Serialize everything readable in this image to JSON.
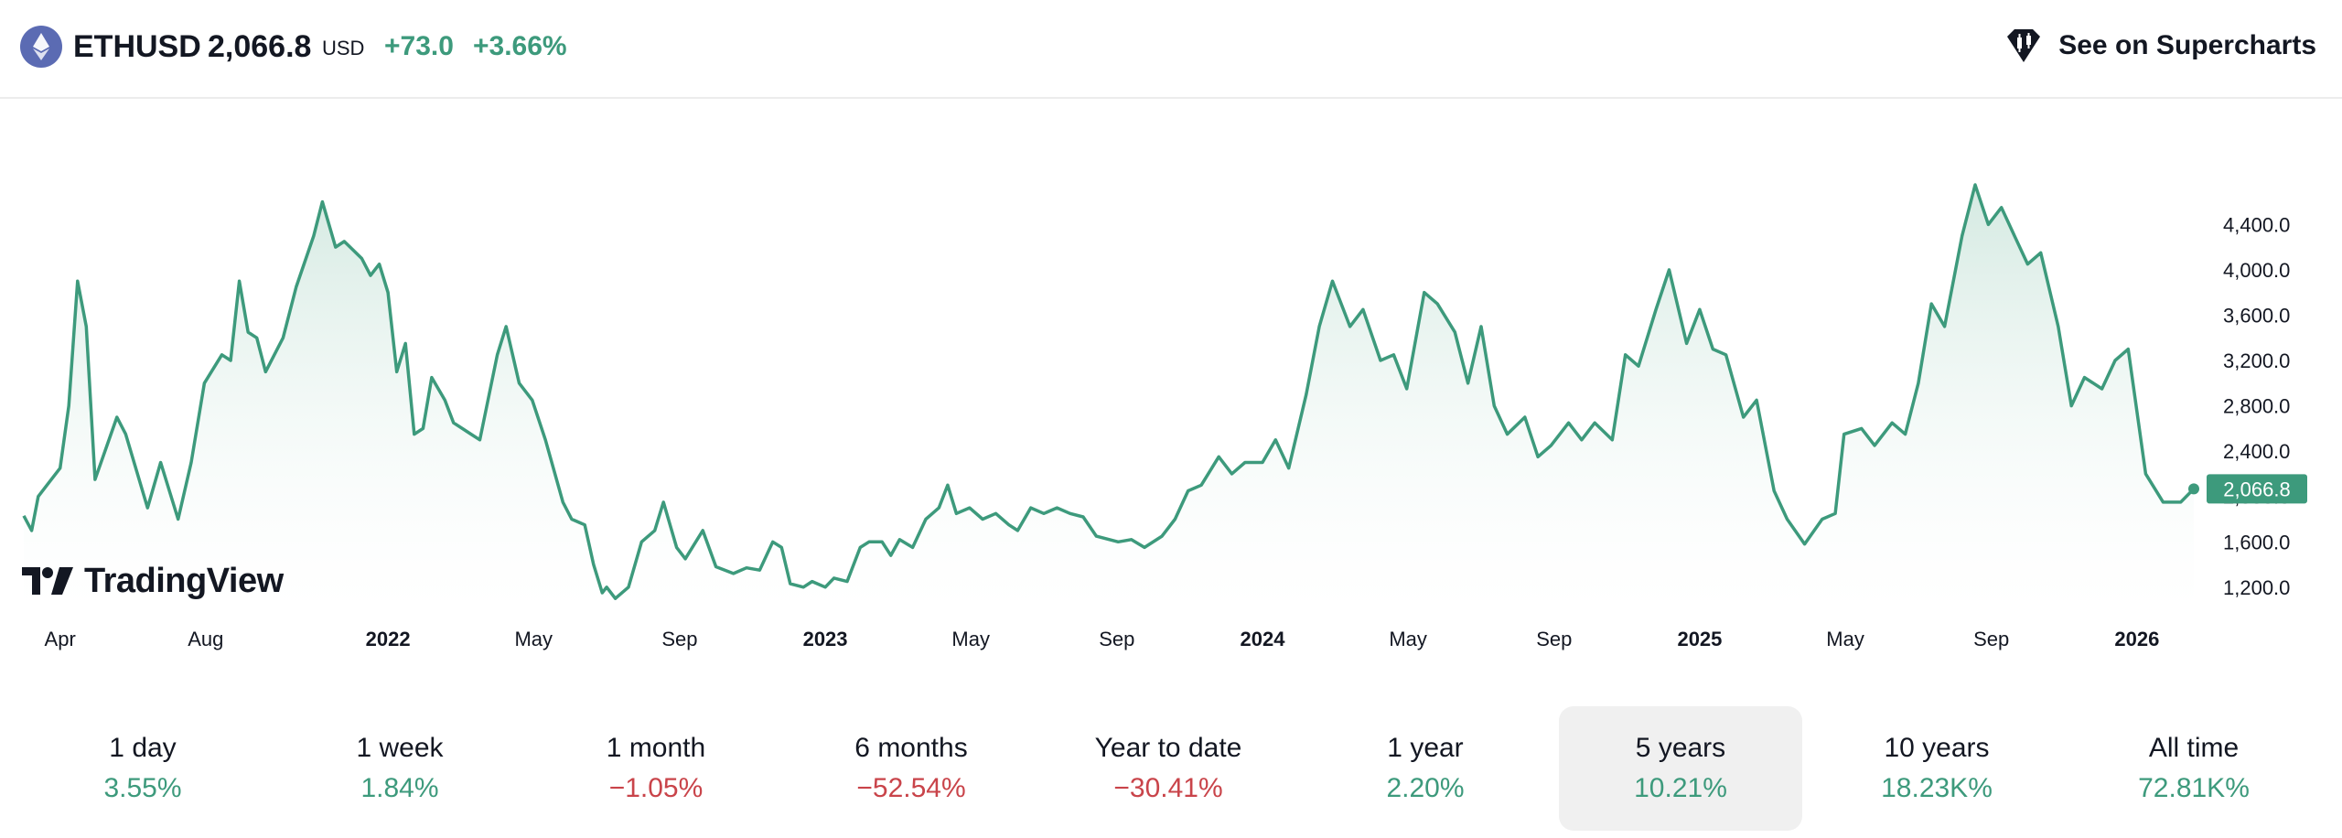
{
  "header": {
    "symbol": "ETHUSD",
    "price": "2,066.8",
    "currency": "USD",
    "change_abs": "+73.0",
    "change_pct": "+3.66%",
    "supercharts_label": "See on Supercharts"
  },
  "branding": {
    "logo_text": "TradingView"
  },
  "colors": {
    "line": "#3d9a7c",
    "fill_top": "#cfe7de",
    "negative": "#c9444a",
    "price_badge": "#3d9a7c"
  },
  "chart_data": {
    "type": "area",
    "title": "",
    "y_axis": {
      "ticks": [
        1200,
        1600,
        2000,
        2400,
        2800,
        3200,
        3600,
        4000,
        4400
      ],
      "tick_labels": [
        "1,200.0",
        "1,600.0",
        "2,000.0",
        "2,400.0",
        "2,800.0",
        "3,200.0",
        "3,600.0",
        "4,000.0",
        "4,400.0"
      ],
      "position": "right"
    },
    "x_axis": {
      "ticks": [
        {
          "label": "Apr",
          "t": 2021.25,
          "bold": false
        },
        {
          "label": "Aug",
          "t": 2021.583,
          "bold": false
        },
        {
          "label": "2022",
          "t": 2022.0,
          "bold": true
        },
        {
          "label": "May",
          "t": 2022.333,
          "bold": false
        },
        {
          "label": "Sep",
          "t": 2022.667,
          "bold": false
        },
        {
          "label": "2023",
          "t": 2023.0,
          "bold": true
        },
        {
          "label": "May",
          "t": 2023.333,
          "bold": false
        },
        {
          "label": "Sep",
          "t": 2023.667,
          "bold": false
        },
        {
          "label": "2024",
          "t": 2024.0,
          "bold": true
        },
        {
          "label": "May",
          "t": 2024.333,
          "bold": false
        },
        {
          "label": "Sep",
          "t": 2024.667,
          "bold": false
        },
        {
          "label": "2025",
          "t": 2025.0,
          "bold": true
        },
        {
          "label": "May",
          "t": 2025.333,
          "bold": false
        },
        {
          "label": "Sep",
          "t": 2025.667,
          "bold": false
        },
        {
          "label": "2026",
          "t": 2026.0,
          "bold": true
        }
      ]
    },
    "last_value": 2066.8,
    "last_value_label": "2,066.8",
    "series": [
      {
        "values": [
          [
            2021.167,
            1830
          ],
          [
            2021.185,
            1700
          ],
          [
            2021.2,
            2000
          ],
          [
            2021.22,
            2100
          ],
          [
            2021.25,
            2250
          ],
          [
            2021.27,
            2800
          ],
          [
            2021.29,
            3900
          ],
          [
            2021.31,
            3500
          ],
          [
            2021.33,
            2150
          ],
          [
            2021.38,
            2700
          ],
          [
            2021.4,
            2550
          ],
          [
            2021.45,
            1900
          ],
          [
            2021.48,
            2300
          ],
          [
            2021.52,
            1800
          ],
          [
            2021.55,
            2300
          ],
          [
            2021.58,
            3000
          ],
          [
            2021.62,
            3250
          ],
          [
            2021.64,
            3200
          ],
          [
            2021.66,
            3900
          ],
          [
            2021.68,
            3450
          ],
          [
            2021.7,
            3400
          ],
          [
            2021.72,
            3100
          ],
          [
            2021.76,
            3400
          ],
          [
            2021.79,
            3850
          ],
          [
            2021.83,
            4300
          ],
          [
            2021.85,
            4600
          ],
          [
            2021.88,
            4200
          ],
          [
            2021.9,
            4250
          ],
          [
            2021.94,
            4100
          ],
          [
            2021.96,
            3950
          ],
          [
            2021.98,
            4050
          ],
          [
            2022.0,
            3800
          ],
          [
            2022.02,
            3100
          ],
          [
            2022.04,
            3350
          ],
          [
            2022.06,
            2550
          ],
          [
            2022.08,
            2600
          ],
          [
            2022.1,
            3050
          ],
          [
            2022.13,
            2850
          ],
          [
            2022.15,
            2650
          ],
          [
            2022.19,
            2550
          ],
          [
            2022.21,
            2500
          ],
          [
            2022.25,
            3250
          ],
          [
            2022.27,
            3500
          ],
          [
            2022.3,
            3000
          ],
          [
            2022.33,
            2850
          ],
          [
            2022.36,
            2500
          ],
          [
            2022.4,
            1950
          ],
          [
            2022.42,
            1800
          ],
          [
            2022.45,
            1750
          ],
          [
            2022.47,
            1400
          ],
          [
            2022.49,
            1150
          ],
          [
            2022.5,
            1200
          ],
          [
            2022.52,
            1100
          ],
          [
            2022.55,
            1200
          ],
          [
            2022.58,
            1600
          ],
          [
            2022.61,
            1700
          ],
          [
            2022.63,
            1950
          ],
          [
            2022.66,
            1550
          ],
          [
            2022.68,
            1450
          ],
          [
            2022.72,
            1700
          ],
          [
            2022.75,
            1380
          ],
          [
            2022.79,
            1320
          ],
          [
            2022.82,
            1370
          ],
          [
            2022.85,
            1350
          ],
          [
            2022.88,
            1600
          ],
          [
            2022.9,
            1550
          ],
          [
            2022.92,
            1230
          ],
          [
            2022.95,
            1200
          ],
          [
            2022.97,
            1250
          ],
          [
            2023.0,
            1200
          ],
          [
            2023.02,
            1280
          ],
          [
            2023.05,
            1250
          ],
          [
            2023.08,
            1550
          ],
          [
            2023.1,
            1600
          ],
          [
            2023.13,
            1600
          ],
          [
            2023.15,
            1480
          ],
          [
            2023.17,
            1620
          ],
          [
            2023.2,
            1550
          ],
          [
            2023.23,
            1800
          ],
          [
            2023.26,
            1900
          ],
          [
            2023.28,
            2100
          ],
          [
            2023.3,
            1850
          ],
          [
            2023.33,
            1900
          ],
          [
            2023.36,
            1800
          ],
          [
            2023.39,
            1850
          ],
          [
            2023.42,
            1750
          ],
          [
            2023.44,
            1700
          ],
          [
            2023.47,
            1900
          ],
          [
            2023.5,
            1850
          ],
          [
            2023.53,
            1900
          ],
          [
            2023.56,
            1850
          ],
          [
            2023.59,
            1820
          ],
          [
            2023.62,
            1650
          ],
          [
            2023.65,
            1620
          ],
          [
            2023.67,
            1600
          ],
          [
            2023.7,
            1620
          ],
          [
            2023.73,
            1550
          ],
          [
            2023.77,
            1650
          ],
          [
            2023.8,
            1800
          ],
          [
            2023.83,
            2050
          ],
          [
            2023.86,
            2100
          ],
          [
            2023.9,
            2350
          ],
          [
            2023.93,
            2200
          ],
          [
            2023.96,
            2300
          ],
          [
            2024.0,
            2300
          ],
          [
            2024.03,
            2500
          ],
          [
            2024.06,
            2250
          ],
          [
            2024.1,
            2900
          ],
          [
            2024.13,
            3500
          ],
          [
            2024.16,
            3900
          ],
          [
            2024.2,
            3500
          ],
          [
            2024.23,
            3650
          ],
          [
            2024.27,
            3200
          ],
          [
            2024.3,
            3250
          ],
          [
            2024.33,
            2950
          ],
          [
            2024.37,
            3800
          ],
          [
            2024.4,
            3700
          ],
          [
            2024.44,
            3450
          ],
          [
            2024.47,
            3000
          ],
          [
            2024.5,
            3500
          ],
          [
            2024.53,
            2800
          ],
          [
            2024.56,
            2550
          ],
          [
            2024.6,
            2700
          ],
          [
            2024.63,
            2350
          ],
          [
            2024.66,
            2450
          ],
          [
            2024.7,
            2650
          ],
          [
            2024.73,
            2500
          ],
          [
            2024.76,
            2650
          ],
          [
            2024.8,
            2500
          ],
          [
            2024.83,
            3250
          ],
          [
            2024.86,
            3150
          ],
          [
            2024.9,
            3650
          ],
          [
            2024.93,
            4000
          ],
          [
            2024.97,
            3350
          ],
          [
            2025.0,
            3650
          ],
          [
            2025.03,
            3300
          ],
          [
            2025.06,
            3250
          ],
          [
            2025.1,
            2700
          ],
          [
            2025.13,
            2850
          ],
          [
            2025.17,
            2050
          ],
          [
            2025.2,
            1800
          ],
          [
            2025.24,
            1580
          ],
          [
            2025.28,
            1800
          ],
          [
            2025.31,
            1850
          ],
          [
            2025.33,
            2550
          ],
          [
            2025.37,
            2600
          ],
          [
            2025.4,
            2450
          ],
          [
            2025.44,
            2650
          ],
          [
            2025.47,
            2550
          ],
          [
            2025.5,
            3000
          ],
          [
            2025.53,
            3700
          ],
          [
            2025.56,
            3500
          ],
          [
            2025.6,
            4300
          ],
          [
            2025.63,
            4750
          ],
          [
            2025.66,
            4400
          ],
          [
            2025.69,
            4550
          ],
          [
            2025.72,
            4300
          ],
          [
            2025.75,
            4050
          ],
          [
            2025.78,
            4150
          ],
          [
            2025.82,
            3500
          ],
          [
            2025.85,
            2800
          ],
          [
            2025.88,
            3050
          ],
          [
            2025.92,
            2950
          ],
          [
            2025.95,
            3200
          ],
          [
            2025.98,
            3300
          ],
          [
            2026.02,
            2200
          ],
          [
            2026.06,
            1950
          ],
          [
            2026.1,
            1950
          ],
          [
            2026.13,
            2066.8
          ]
        ]
      }
    ]
  },
  "periods": [
    {
      "label": "1 day",
      "value": "3.55%",
      "dir": "pos",
      "selected": false
    },
    {
      "label": "1 week",
      "value": "1.84%",
      "dir": "pos",
      "selected": false
    },
    {
      "label": "1 month",
      "value": "−1.05%",
      "dir": "neg",
      "selected": false
    },
    {
      "label": "6 months",
      "value": "−52.54%",
      "dir": "neg",
      "selected": false
    },
    {
      "label": "Year to date",
      "value": "−30.41%",
      "dir": "neg",
      "selected": false
    },
    {
      "label": "1 year",
      "value": "2.20%",
      "dir": "pos",
      "selected": false
    },
    {
      "label": "5 years",
      "value": "10.21%",
      "dir": "pos",
      "selected": true
    },
    {
      "label": "10 years",
      "value": "18.23K%",
      "dir": "pos",
      "selected": false
    },
    {
      "label": "All time",
      "value": "72.81K%",
      "dir": "pos",
      "selected": false
    }
  ]
}
